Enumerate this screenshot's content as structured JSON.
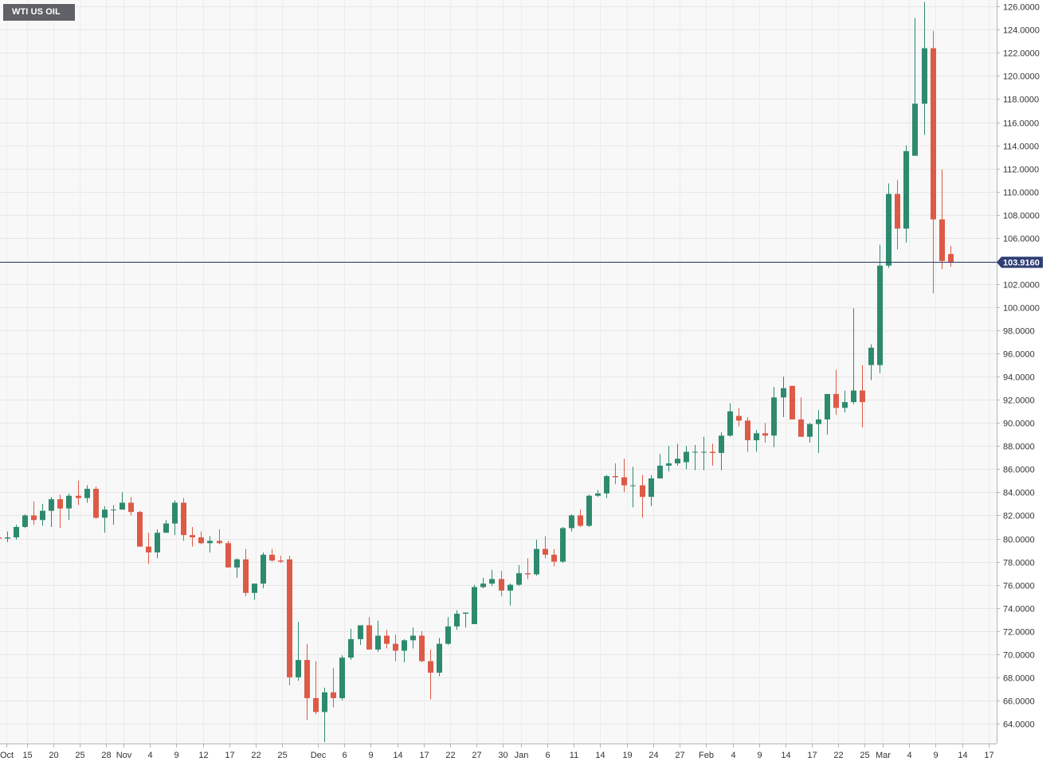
{
  "chart_data": {
    "type": "candlestick",
    "title": "WTI US OIL",
    "last_price": "103.9160",
    "y_ticks": [
      "126.0000",
      "124.0000",
      "122.0000",
      "120.0000",
      "118.0000",
      "116.0000",
      "114.0000",
      "112.0000",
      "110.0000",
      "108.0000",
      "106.0000",
      "104.0000",
      "102.0000",
      "100.0000",
      "98.0000",
      "96.0000",
      "94.0000",
      "92.0000",
      "90.0000",
      "88.0000",
      "86.0000",
      "84.0000",
      "82.0000",
      "80.0000",
      "78.0000",
      "76.0000",
      "74.0000",
      "72.0000",
      "70.0000",
      "68.0000",
      "66.0000",
      "64.0000"
    ],
    "x_ticks": [
      "Oct",
      "15",
      "20",
      "25",
      "28",
      "Nov",
      "4",
      "9",
      "12",
      "17",
      "22",
      "25",
      "Dec",
      "6",
      "9",
      "14",
      "17",
      "22",
      "27",
      "30",
      "Jan",
      "6",
      "11",
      "14",
      "19",
      "24",
      "27",
      "Feb",
      "4",
      "9",
      "14",
      "17",
      "22",
      "25",
      "Mar",
      "4",
      "9",
      "14",
      "17"
    ],
    "candles": [
      {
        "o": 80.1,
        "h": 80.9,
        "l": 79.0,
        "c": 80.0
      },
      {
        "o": 80.0,
        "h": 80.6,
        "l": 79.7,
        "c": 80.1
      },
      {
        "o": 80.1,
        "h": 81.2,
        "l": 79.9,
        "c": 81.0
      },
      {
        "o": 81.0,
        "h": 82.1,
        "l": 80.9,
        "c": 82.0
      },
      {
        "o": 82.0,
        "h": 83.2,
        "l": 81.2,
        "c": 81.6
      },
      {
        "o": 81.6,
        "h": 83.0,
        "l": 81.1,
        "c": 82.4
      },
      {
        "o": 82.4,
        "h": 83.6,
        "l": 81.0,
        "c": 83.4
      },
      {
        "o": 83.4,
        "h": 83.8,
        "l": 80.9,
        "c": 82.6
      },
      {
        "o": 82.6,
        "h": 83.9,
        "l": 81.6,
        "c": 83.7
      },
      {
        "o": 83.7,
        "h": 85.0,
        "l": 82.9,
        "c": 83.5
      },
      {
        "o": 83.5,
        "h": 84.6,
        "l": 83.1,
        "c": 84.3
      },
      {
        "o": 84.3,
        "h": 84.5,
        "l": 81.7,
        "c": 81.8
      },
      {
        "o": 81.8,
        "h": 82.8,
        "l": 80.5,
        "c": 82.5
      },
      {
        "o": 82.5,
        "h": 82.9,
        "l": 81.2,
        "c": 82.5
      },
      {
        "o": 82.5,
        "h": 84.0,
        "l": 82.5,
        "c": 83.1
      },
      {
        "o": 83.1,
        "h": 83.6,
        "l": 82.0,
        "c": 82.3
      },
      {
        "o": 82.3,
        "h": 82.4,
        "l": 79.5,
        "c": 79.3
      },
      {
        "o": 79.3,
        "h": 80.5,
        "l": 77.8,
        "c": 78.8
      },
      {
        "o": 78.8,
        "h": 80.8,
        "l": 78.3,
        "c": 80.5
      },
      {
        "o": 80.5,
        "h": 81.6,
        "l": 80.5,
        "c": 81.3
      },
      {
        "o": 81.3,
        "h": 83.3,
        "l": 80.3,
        "c": 83.1
      },
      {
        "o": 83.1,
        "h": 83.5,
        "l": 79.8,
        "c": 80.3
      },
      {
        "o": 80.3,
        "h": 81.0,
        "l": 79.3,
        "c": 80.1
      },
      {
        "o": 80.1,
        "h": 80.6,
        "l": 79.5,
        "c": 79.6
      },
      {
        "o": 79.6,
        "h": 80.2,
        "l": 78.8,
        "c": 79.8
      },
      {
        "o": 79.8,
        "h": 80.8,
        "l": 79.5,
        "c": 79.6
      },
      {
        "o": 79.6,
        "h": 79.8,
        "l": 77.5,
        "c": 77.5
      },
      {
        "o": 77.5,
        "h": 78.3,
        "l": 76.6,
        "c": 78.2
      },
      {
        "o": 78.2,
        "h": 79.1,
        "l": 75.0,
        "c": 75.3
      },
      {
        "o": 75.3,
        "h": 76.0,
        "l": 74.7,
        "c": 76.1
      },
      {
        "o": 76.1,
        "h": 78.8,
        "l": 75.7,
        "c": 78.6
      },
      {
        "o": 78.6,
        "h": 79.1,
        "l": 78.0,
        "c": 78.1
      },
      {
        "o": 78.1,
        "h": 78.5,
        "l": 77.9,
        "c": 78.0
      },
      {
        "o": 78.2,
        "h": 78.5,
        "l": 67.3,
        "c": 68.0
      },
      {
        "o": 68.0,
        "h": 72.8,
        "l": 67.7,
        "c": 69.5
      },
      {
        "o": 69.5,
        "h": 70.9,
        "l": 64.3,
        "c": 66.2
      },
      {
        "o": 66.2,
        "h": 69.4,
        "l": 64.8,
        "c": 65.0
      },
      {
        "o": 65.0,
        "h": 67.1,
        "l": 62.4,
        "c": 66.7
      },
      {
        "o": 66.7,
        "h": 68.8,
        "l": 65.4,
        "c": 66.2
      },
      {
        "o": 66.2,
        "h": 69.9,
        "l": 66.0,
        "c": 69.7
      },
      {
        "o": 69.7,
        "h": 72.2,
        "l": 69.5,
        "c": 71.3
      },
      {
        "o": 71.3,
        "h": 72.5,
        "l": 70.8,
        "c": 72.5
      },
      {
        "o": 72.5,
        "h": 73.2,
        "l": 70.5,
        "c": 70.4
      },
      {
        "o": 70.4,
        "h": 72.9,
        "l": 70.2,
        "c": 71.6
      },
      {
        "o": 71.6,
        "h": 72.1,
        "l": 70.5,
        "c": 70.9
      },
      {
        "o": 70.9,
        "h": 71.7,
        "l": 69.4,
        "c": 70.3
      },
      {
        "o": 70.3,
        "h": 71.3,
        "l": 69.3,
        "c": 71.2
      },
      {
        "o": 71.2,
        "h": 72.3,
        "l": 70.5,
        "c": 71.6
      },
      {
        "o": 71.6,
        "h": 72.0,
        "l": 69.3,
        "c": 69.4
      },
      {
        "o": 69.4,
        "h": 70.4,
        "l": 66.1,
        "c": 68.4
      },
      {
        "o": 68.4,
        "h": 71.4,
        "l": 68.1,
        "c": 70.9
      },
      {
        "o": 70.9,
        "h": 73.2,
        "l": 70.8,
        "c": 72.4
      },
      {
        "o": 72.4,
        "h": 73.8,
        "l": 72.1,
        "c": 73.5
      },
      {
        "o": 73.5,
        "h": 73.6,
        "l": 72.3,
        "c": 73.6
      },
      {
        "o": 72.6,
        "h": 76.0,
        "l": 72.6,
        "c": 75.8
      },
      {
        "o": 75.8,
        "h": 76.6,
        "l": 75.7,
        "c": 76.1
      },
      {
        "o": 76.1,
        "h": 77.3,
        "l": 75.9,
        "c": 76.5
      },
      {
        "o": 76.5,
        "h": 77.2,
        "l": 75.0,
        "c": 75.5
      },
      {
        "o": 75.5,
        "h": 76.1,
        "l": 74.2,
        "c": 76.0
      },
      {
        "o": 76.0,
        "h": 77.7,
        "l": 75.9,
        "c": 77.0
      },
      {
        "o": 77.0,
        "h": 78.3,
        "l": 76.5,
        "c": 76.9
      },
      {
        "o": 76.9,
        "h": 79.9,
        "l": 76.8,
        "c": 79.1
      },
      {
        "o": 79.1,
        "h": 80.2,
        "l": 78.3,
        "c": 78.6
      },
      {
        "o": 78.6,
        "h": 79.1,
        "l": 77.6,
        "c": 78.0
      },
      {
        "o": 78.0,
        "h": 81.0,
        "l": 77.9,
        "c": 80.9
      },
      {
        "o": 80.9,
        "h": 82.1,
        "l": 80.6,
        "c": 82.0
      },
      {
        "o": 82.0,
        "h": 82.5,
        "l": 81.0,
        "c": 81.1
      },
      {
        "o": 81.1,
        "h": 83.8,
        "l": 81.0,
        "c": 83.7
      },
      {
        "o": 83.7,
        "h": 84.2,
        "l": 83.6,
        "c": 83.9
      },
      {
        "o": 83.9,
        "h": 85.5,
        "l": 83.5,
        "c": 85.4
      },
      {
        "o": 85.4,
        "h": 86.5,
        "l": 84.7,
        "c": 85.3
      },
      {
        "o": 85.3,
        "h": 86.9,
        "l": 84.0,
        "c": 84.6
      },
      {
        "o": 84.6,
        "h": 86.2,
        "l": 82.7,
        "c": 84.6
      },
      {
        "o": 84.6,
        "h": 85.5,
        "l": 81.8,
        "c": 83.6
      },
      {
        "o": 83.6,
        "h": 85.5,
        "l": 82.8,
        "c": 85.2
      },
      {
        "o": 85.2,
        "h": 87.3,
        "l": 85.2,
        "c": 86.3
      },
      {
        "o": 86.3,
        "h": 88.0,
        "l": 85.8,
        "c": 86.5
      },
      {
        "o": 86.5,
        "h": 88.2,
        "l": 86.3,
        "c": 86.9
      },
      {
        "o": 86.6,
        "h": 88.0,
        "l": 86.0,
        "c": 87.5
      },
      {
        "o": 87.5,
        "h": 88.1,
        "l": 85.9,
        "c": 87.5
      },
      {
        "o": 87.5,
        "h": 88.8,
        "l": 85.9,
        "c": 87.5
      },
      {
        "o": 87.5,
        "h": 88.2,
        "l": 86.3,
        "c": 87.4
      },
      {
        "o": 87.4,
        "h": 89.2,
        "l": 85.9,
        "c": 88.9
      },
      {
        "o": 88.9,
        "h": 91.7,
        "l": 88.8,
        "c": 91.0
      },
      {
        "o": 90.6,
        "h": 91.3,
        "l": 89.7,
        "c": 90.2
      },
      {
        "o": 90.2,
        "h": 90.5,
        "l": 87.5,
        "c": 88.5
      },
      {
        "o": 88.5,
        "h": 89.4,
        "l": 87.5,
        "c": 89.1
      },
      {
        "o": 89.1,
        "h": 90.0,
        "l": 88.3,
        "c": 88.9
      },
      {
        "o": 88.9,
        "h": 93.1,
        "l": 87.9,
        "c": 92.2
      },
      {
        "o": 92.2,
        "h": 94.0,
        "l": 90.5,
        "c": 93.0
      },
      {
        "o": 93.2,
        "h": 93.2,
        "l": 90.3,
        "c": 90.3
      },
      {
        "o": 90.3,
        "h": 92.2,
        "l": 88.8,
        "c": 88.8
      },
      {
        "o": 88.8,
        "h": 90.0,
        "l": 88.3,
        "c": 89.9
      },
      {
        "o": 89.9,
        "h": 91.1,
        "l": 87.4,
        "c": 90.3
      },
      {
        "o": 90.3,
        "h": 92.5,
        "l": 89.0,
        "c": 92.5
      },
      {
        "o": 92.5,
        "h": 94.6,
        "l": 90.7,
        "c": 91.3
      },
      {
        "o": 91.3,
        "h": 92.8,
        "l": 90.9,
        "c": 91.8
      },
      {
        "o": 91.8,
        "h": 99.9,
        "l": 91.6,
        "c": 92.8
      },
      {
        "o": 92.8,
        "h": 95.0,
        "l": 89.6,
        "c": 91.8
      },
      {
        "o": 95.0,
        "h": 96.8,
        "l": 93.7,
        "c": 96.5
      },
      {
        "o": 95.0,
        "h": 105.4,
        "l": 94.3,
        "c": 103.6
      },
      {
        "o": 103.6,
        "h": 110.7,
        "l": 103.4,
        "c": 109.8
      },
      {
        "o": 109.8,
        "h": 111.0,
        "l": 105.0,
        "c": 106.8
      },
      {
        "o": 106.8,
        "h": 114.0,
        "l": 105.6,
        "c": 113.5
      },
      {
        "o": 113.1,
        "h": 125.0,
        "l": 113.1,
        "c": 117.6
      },
      {
        "o": 117.6,
        "h": 126.4,
        "l": 114.9,
        "c": 122.4
      },
      {
        "o": 122.4,
        "h": 123.9,
        "l": 101.2,
        "c": 107.6
      },
      {
        "o": 107.6,
        "h": 111.9,
        "l": 103.3,
        "c": 104.0
      },
      {
        "o": 104.6,
        "h": 105.3,
        "l": 103.5,
        "c": 103.9
      }
    ]
  }
}
